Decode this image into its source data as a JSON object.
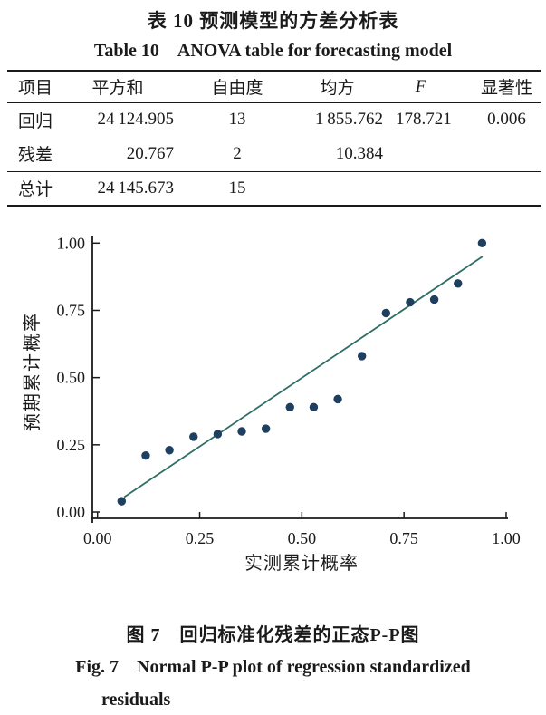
{
  "titles": {
    "table_zh": "表 10 预测模型的方差分析表",
    "table_en": "Table 10 ANOVA table for forecasting model"
  },
  "table": {
    "headers": [
      "项目",
      "平方和",
      "自由度",
      "均方",
      "F",
      "显著性"
    ],
    "rows": [
      [
        "回归",
        "24 124.905",
        "13",
        "1 855.762",
        "178.721",
        "0.006"
      ],
      [
        "残差",
        "20.767",
        "2",
        "10.384",
        "",
        ""
      ],
      [
        "总计",
        "24 145.673",
        "15",
        "",
        "",
        ""
      ]
    ]
  },
  "captions": {
    "fig_zh": "图 7　回归标准化残差的正态P-P图",
    "fig_en_line1": "Fig. 7 Normal P-P plot of regression standardized",
    "fig_en_line2": "residuals"
  },
  "chart_data": {
    "type": "scatter",
    "title": "",
    "xlabel": "实测累计概率",
    "ylabel": "预期累计概率",
    "xlim": [
      0,
      1
    ],
    "ylim": [
      0,
      1
    ],
    "grid": false,
    "legend": "none",
    "point_color": "#1e3f5f",
    "line_color": "#2e6f64",
    "axis_color": "#1a1a1a",
    "xticks": [
      {
        "v": 0.0,
        "label": "0.00"
      },
      {
        "v": 0.25,
        "label": "0.25"
      },
      {
        "v": 0.5,
        "label": "0.50"
      },
      {
        "v": 0.75,
        "label": "0.75"
      },
      {
        "v": 1.0,
        "label": "1.00"
      }
    ],
    "yticks": [
      {
        "v": 0.0,
        "label": "0.00"
      },
      {
        "v": 0.25,
        "label": "0.25"
      },
      {
        "v": 0.5,
        "label": "0.50"
      },
      {
        "v": 0.75,
        "label": "0.75"
      },
      {
        "v": 1.0,
        "label": "1.00"
      }
    ],
    "points": [
      [
        0.059,
        0.04
      ],
      [
        0.118,
        0.21
      ],
      [
        0.176,
        0.23
      ],
      [
        0.235,
        0.28
      ],
      [
        0.294,
        0.29
      ],
      [
        0.353,
        0.3
      ],
      [
        0.412,
        0.31
      ],
      [
        0.471,
        0.39
      ],
      [
        0.529,
        0.39
      ],
      [
        0.588,
        0.42
      ],
      [
        0.647,
        0.58
      ],
      [
        0.706,
        0.74
      ],
      [
        0.765,
        0.78
      ],
      [
        0.824,
        0.79
      ],
      [
        0.882,
        0.85
      ],
      [
        0.941,
        1.0
      ]
    ],
    "reference_line": {
      "x1": 0.065,
      "y1": 0.055,
      "x2": 0.942,
      "y2": 0.95
    }
  }
}
